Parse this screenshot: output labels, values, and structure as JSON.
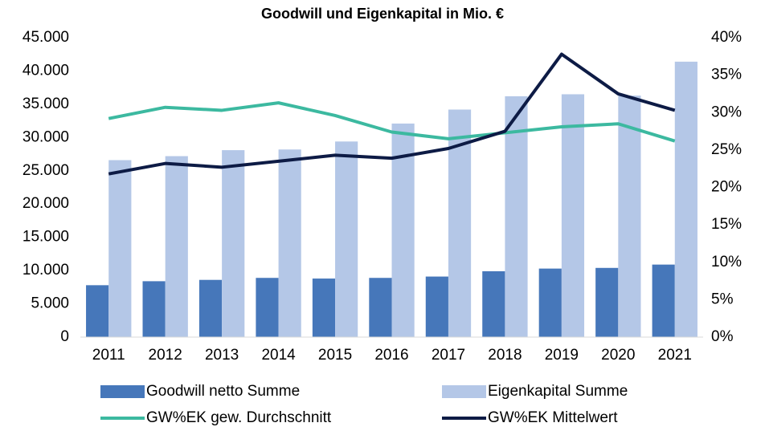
{
  "chart_data": {
    "type": "bar_line",
    "title": "Goodwill und Eigenkapital in Mio. €",
    "categories": [
      "2011",
      "2012",
      "2013",
      "2014",
      "2015",
      "2016",
      "2017",
      "2018",
      "2019",
      "2020",
      "2021"
    ],
    "series": [
      {
        "name": "Goodwill netto Summe",
        "type": "bar",
        "color": "#4677ba",
        "values": [
          7800,
          8400,
          8600,
          8900,
          8800,
          8900,
          9100,
          9900,
          10300,
          10400,
          10900
        ]
      },
      {
        "name": "Eigenkapital Summe",
        "type": "bar",
        "color": "#b4c7e7",
        "values": [
          26600,
          27200,
          28100,
          28200,
          29400,
          32100,
          34200,
          36200,
          36500,
          36300,
          41400
        ]
      },
      {
        "name": "GW%EK gew. Durchschnitt",
        "type": "line",
        "axis": "y2",
        "color": "#3cb9a0",
        "values": [
          29.2,
          30.7,
          30.3,
          31.3,
          29.6,
          27.4,
          26.5,
          27.3,
          28.1,
          28.5,
          26.2
        ]
      },
      {
        "name": "GW%EK Mittelwert",
        "type": "line",
        "axis": "y2",
        "color": "#0d1b45",
        "values": [
          21.8,
          23.2,
          22.7,
          23.5,
          24.3,
          23.9,
          25.2,
          27.5,
          37.8,
          32.5,
          30.3
        ]
      }
    ],
    "ylim": [
      0,
      45000
    ],
    "yticks": [
      0,
      {
        "value": 5000,
        "label": "5.000"
      },
      {
        "value": 10000,
        "label": "10.000"
      },
      {
        "value": 15000,
        "label": "15.000"
      },
      {
        "value": 20000,
        "label": "20.000"
      },
      {
        "value": 25000,
        "label": "25.000"
      },
      {
        "value": 30000,
        "label": "30.000"
      },
      {
        "value": 35000,
        "label": "35.000"
      },
      {
        "value": 40000,
        "label": "40.000"
      },
      {
        "value": 45000,
        "label": "45.000"
      }
    ],
    "y2lim": [
      0,
      40
    ],
    "y2ticks": [
      {
        "value": 0,
        "label": "0%"
      },
      {
        "value": 5,
        "label": "5%"
      },
      {
        "value": 10,
        "label": "10%"
      },
      {
        "value": 15,
        "label": "15%"
      },
      {
        "value": 20,
        "label": "20%"
      },
      {
        "value": 25,
        "label": "25%"
      },
      {
        "value": 30,
        "label": "30%"
      },
      {
        "value": 35,
        "label": "35%"
      },
      {
        "value": 40,
        "label": "40%"
      }
    ],
    "grid": false,
    "legend": "bottom"
  }
}
